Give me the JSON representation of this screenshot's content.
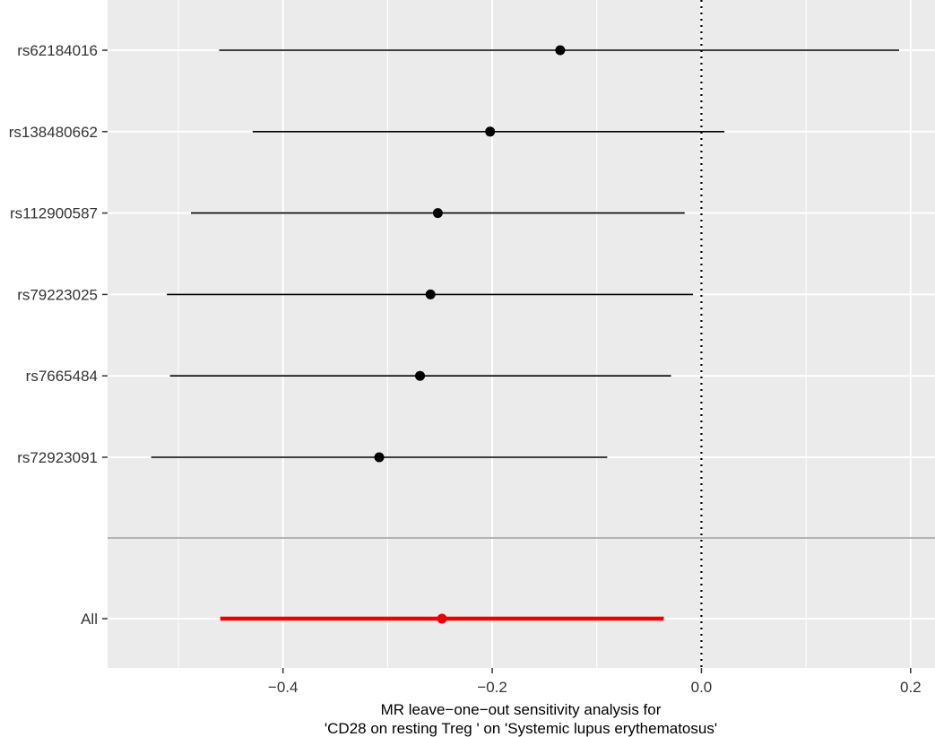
{
  "chart_data": {
    "type": "forest",
    "xlabel_lines": [
      "MR leave−one−out sensitivity analysis for",
      "'CD28 on resting Treg ' on 'Systemic lupus erythematosus'"
    ],
    "ylabel": "",
    "xlim": [
      -0.5677,
      0.2233
    ],
    "x_ticks": [
      -0.4,
      -0.2,
      0.0,
      0.2
    ],
    "x_tick_labels": [
      "−0.4",
      "−0.2",
      "0.0",
      "0.2"
    ],
    "reference_line_x": 0,
    "grid": true,
    "snps": [
      {
        "label": "rs62184016",
        "estimate": -0.135,
        "lower": -0.461,
        "upper": 0.189
      },
      {
        "label": "rs138480662",
        "estimate": -0.202,
        "lower": -0.429,
        "upper": 0.022
      },
      {
        "label": "rs112900587",
        "estimate": -0.252,
        "lower": -0.488,
        "upper": -0.016
      },
      {
        "label": "rs79223025",
        "estimate": -0.259,
        "lower": -0.511,
        "upper": -0.008
      },
      {
        "label": "rs7665484",
        "estimate": -0.269,
        "lower": -0.508,
        "upper": -0.029
      },
      {
        "label": "rs72923091",
        "estimate": -0.308,
        "lower": -0.526,
        "upper": -0.09
      }
    ],
    "overall": {
      "label": "All",
      "estimate": -0.248,
      "lower": -0.46,
      "upper": -0.036
    },
    "colors": {
      "panel_background": "#ebebeb",
      "grid": "#ffffff",
      "snp": "#000000",
      "overall": "#ee0000",
      "separator": "#b3b3b3"
    }
  }
}
